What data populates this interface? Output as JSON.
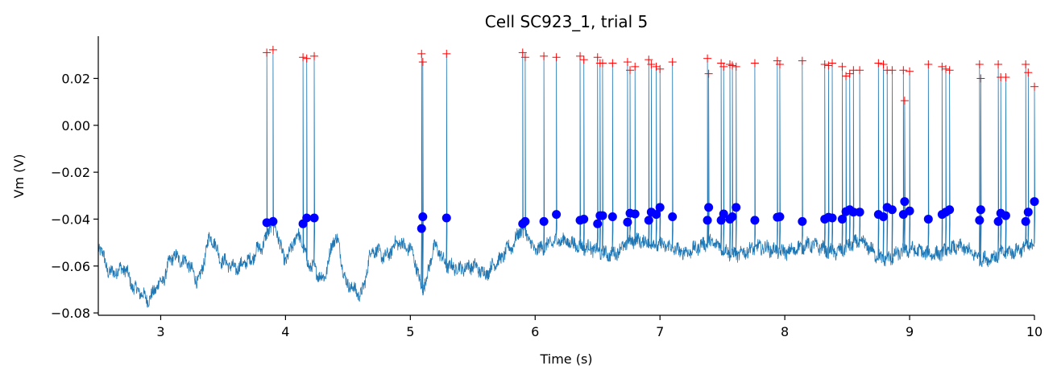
{
  "chart_data": {
    "type": "line",
    "title": "Cell SC923_1,  trial 5",
    "xlabel": "Time (s)",
    "ylabel": "Vm (V)",
    "xlim": [
      2.5,
      10
    ],
    "ylim": [
      -0.081,
      0.038
    ],
    "grid": false,
    "xticks": [
      3,
      4,
      5,
      6,
      7,
      8,
      9,
      10
    ],
    "xtick_labels": [
      "3",
      "4",
      "5",
      "6",
      "7",
      "8",
      "9",
      "10"
    ],
    "yticks": [
      -0.08,
      -0.06,
      -0.04,
      -0.02,
      0.0,
      0.02
    ],
    "ytick_labels": [
      "−0.08",
      "−0.06",
      "−0.04",
      "−0.02",
      "0.00",
      "0.02"
    ],
    "colors": {
      "trace": "#1f77b4",
      "threshold": "#0000ff",
      "peak": "#ff0000"
    },
    "baseline_anchors": {
      "x": [
        2.5,
        2.6,
        2.7,
        2.8,
        2.9,
        3.0,
        3.1,
        3.2,
        3.3,
        3.4,
        3.5,
        3.6,
        3.7,
        3.8,
        3.9,
        4.0,
        4.1,
        4.2,
        4.3,
        4.4,
        4.5,
        4.6,
        4.7,
        4.8,
        4.9,
        5.0,
        5.1,
        5.2,
        5.3,
        5.4,
        5.5,
        5.6,
        5.7,
        5.8,
        5.9,
        6.0,
        6.2,
        6.4,
        6.6,
        6.8,
        7.0,
        7.2,
        7.4,
        7.6,
        7.8,
        8.0,
        8.2,
        8.4,
        8.6,
        8.8,
        9.0,
        9.2,
        9.4,
        9.6,
        9.8,
        10.0
      ],
      "y": [
        -0.052,
        -0.063,
        -0.061,
        -0.07,
        -0.074,
        -0.067,
        -0.056,
        -0.058,
        -0.066,
        -0.048,
        -0.058,
        -0.061,
        -0.058,
        -0.052,
        -0.042,
        -0.057,
        -0.047,
        -0.06,
        -0.065,
        -0.048,
        -0.068,
        -0.072,
        -0.053,
        -0.056,
        -0.05,
        -0.053,
        -0.069,
        -0.052,
        -0.06,
        -0.061,
        -0.06,
        -0.063,
        -0.058,
        -0.052,
        -0.044,
        -0.053,
        -0.049,
        -0.052,
        -0.055,
        -0.049,
        -0.051,
        -0.054,
        -0.05,
        -0.055,
        -0.052,
        -0.054,
        -0.051,
        -0.054,
        -0.05,
        -0.057,
        -0.053,
        -0.055,
        -0.052,
        -0.057,
        -0.054,
        -0.051
      ]
    },
    "spikes": {
      "x": [
        3.85,
        3.9,
        4.14,
        4.17,
        4.23,
        5.09,
        5.1,
        5.29,
        5.9,
        5.92,
        6.07,
        6.17,
        6.36,
        6.39,
        6.5,
        6.52,
        6.54,
        6.62,
        6.74,
        6.76,
        6.8,
        6.91,
        6.93,
        6.97,
        7.0,
        7.1,
        7.38,
        7.39,
        7.49,
        7.51,
        7.56,
        7.58,
        7.61,
        7.76,
        7.94,
        7.96,
        8.14,
        8.32,
        8.35,
        8.38,
        8.46,
        8.49,
        8.52,
        8.55,
        8.6,
        8.75,
        8.79,
        8.82,
        8.86,
        8.95,
        8.96,
        9.0,
        9.15,
        9.26,
        9.29,
        9.32,
        9.56,
        9.57,
        9.71,
        9.73,
        9.77,
        9.93,
        9.95,
        10.0
      ],
      "threshold_v": [
        -0.0415,
        -0.041,
        -0.042,
        -0.0395,
        -0.0395,
        -0.044,
        -0.039,
        -0.0395,
        -0.042,
        -0.041,
        -0.041,
        -0.038,
        -0.0405,
        -0.04,
        -0.042,
        -0.0385,
        -0.0385,
        -0.039,
        -0.0413,
        -0.0375,
        -0.0378,
        -0.0405,
        -0.037,
        -0.038,
        -0.035,
        -0.039,
        -0.0405,
        -0.035,
        -0.0405,
        -0.0378,
        -0.04,
        -0.039,
        -0.035,
        -0.0405,
        -0.0392,
        -0.039,
        -0.041,
        -0.04,
        -0.0392,
        -0.0395,
        -0.04,
        -0.0368,
        -0.036,
        -0.037,
        -0.037,
        -0.038,
        -0.039,
        -0.035,
        -0.036,
        -0.038,
        -0.0325,
        -0.0365,
        -0.04,
        -0.038,
        -0.037,
        -0.036,
        -0.0405,
        -0.036,
        -0.041,
        -0.0375,
        -0.0385,
        -0.041,
        -0.037,
        -0.0325
      ],
      "peak_v": [
        0.031,
        0.0322,
        0.029,
        0.0285,
        0.0295,
        0.0305,
        0.027,
        0.0305,
        0.031,
        0.029,
        0.0295,
        0.029,
        0.0295,
        0.028,
        0.029,
        0.0265,
        0.0265,
        0.0265,
        0.027,
        0.0235,
        0.025,
        0.028,
        0.026,
        0.025,
        0.024,
        0.027,
        0.0285,
        0.022,
        0.0265,
        0.025,
        0.026,
        0.0255,
        0.025,
        0.0265,
        0.0275,
        0.026,
        0.0275,
        0.026,
        0.0255,
        0.0265,
        0.025,
        0.021,
        0.022,
        0.0235,
        0.0235,
        0.0265,
        0.026,
        0.0235,
        0.0235,
        0.0235,
        0.0105,
        0.023,
        0.026,
        0.025,
        0.024,
        0.0235,
        0.026,
        0.02,
        0.026,
        0.0205,
        0.0205,
        0.026,
        0.0225,
        0.0165
      ]
    }
  }
}
